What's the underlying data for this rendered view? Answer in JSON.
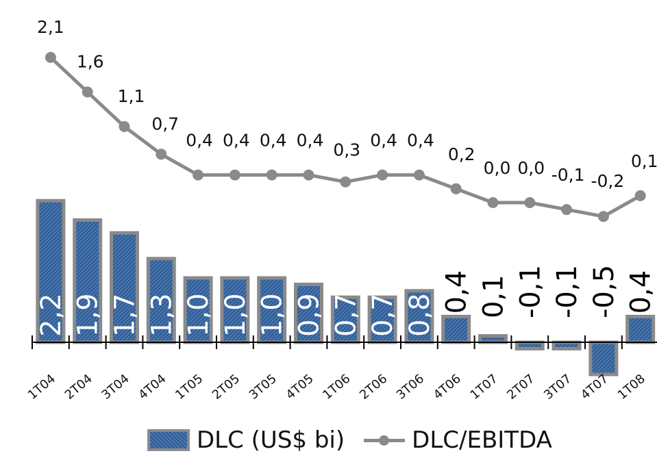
{
  "chart_data": {
    "type": "bar",
    "categories": [
      "1T04",
      "2T04",
      "3T04",
      "4T04",
      "1T05",
      "2T05",
      "3T05",
      "4T05",
      "1T06",
      "2T06",
      "3T06",
      "4T06",
      "1T07",
      "2T07",
      "3T07",
      "4T07",
      "1T08"
    ],
    "series": [
      {
        "name": "DLC (US$ bi)",
        "type": "bar",
        "values": [
          2.2,
          1.9,
          1.7,
          1.3,
          1.0,
          1.0,
          1.0,
          0.9,
          0.7,
          0.7,
          0.8,
          0.4,
          0.1,
          -0.1,
          -0.1,
          -0.5,
          0.4
        ],
        "labels": [
          "2,2",
          "1,9",
          "1,7",
          "1,3",
          "1,0",
          "1,0",
          "1,0",
          "0,9",
          "0,7",
          "0,7",
          "0,8",
          "0,4",
          "0,1",
          "-0,1",
          "-0,1",
          "-0,5",
          "0,4"
        ]
      },
      {
        "name": "DLC/EBITDA",
        "type": "line",
        "values": [
          2.1,
          1.6,
          1.1,
          0.7,
          0.4,
          0.4,
          0.4,
          0.4,
          0.3,
          0.4,
          0.4,
          0.2,
          0.0,
          0.0,
          -0.1,
          -0.2,
          0.1
        ],
        "labels": [
          "2,1",
          "1,6",
          "1,1",
          "0,7",
          "0,4",
          "0,4",
          "0,4",
          "0,4",
          "0,3",
          "0,4",
          "0,4",
          "0,2",
          "0,0",
          "0,0",
          "-0,1",
          "-0,2",
          "0,1"
        ]
      }
    ],
    "colors": {
      "bar_fill": "#2f5a92",
      "bar_border": "#8a8a8a",
      "line": "#8a8a8a"
    },
    "legend_position": "bottom",
    "grid": false
  },
  "legend": {
    "bar_label": "DLC (US$ bi)",
    "line_label": "DLC/EBITDA"
  }
}
